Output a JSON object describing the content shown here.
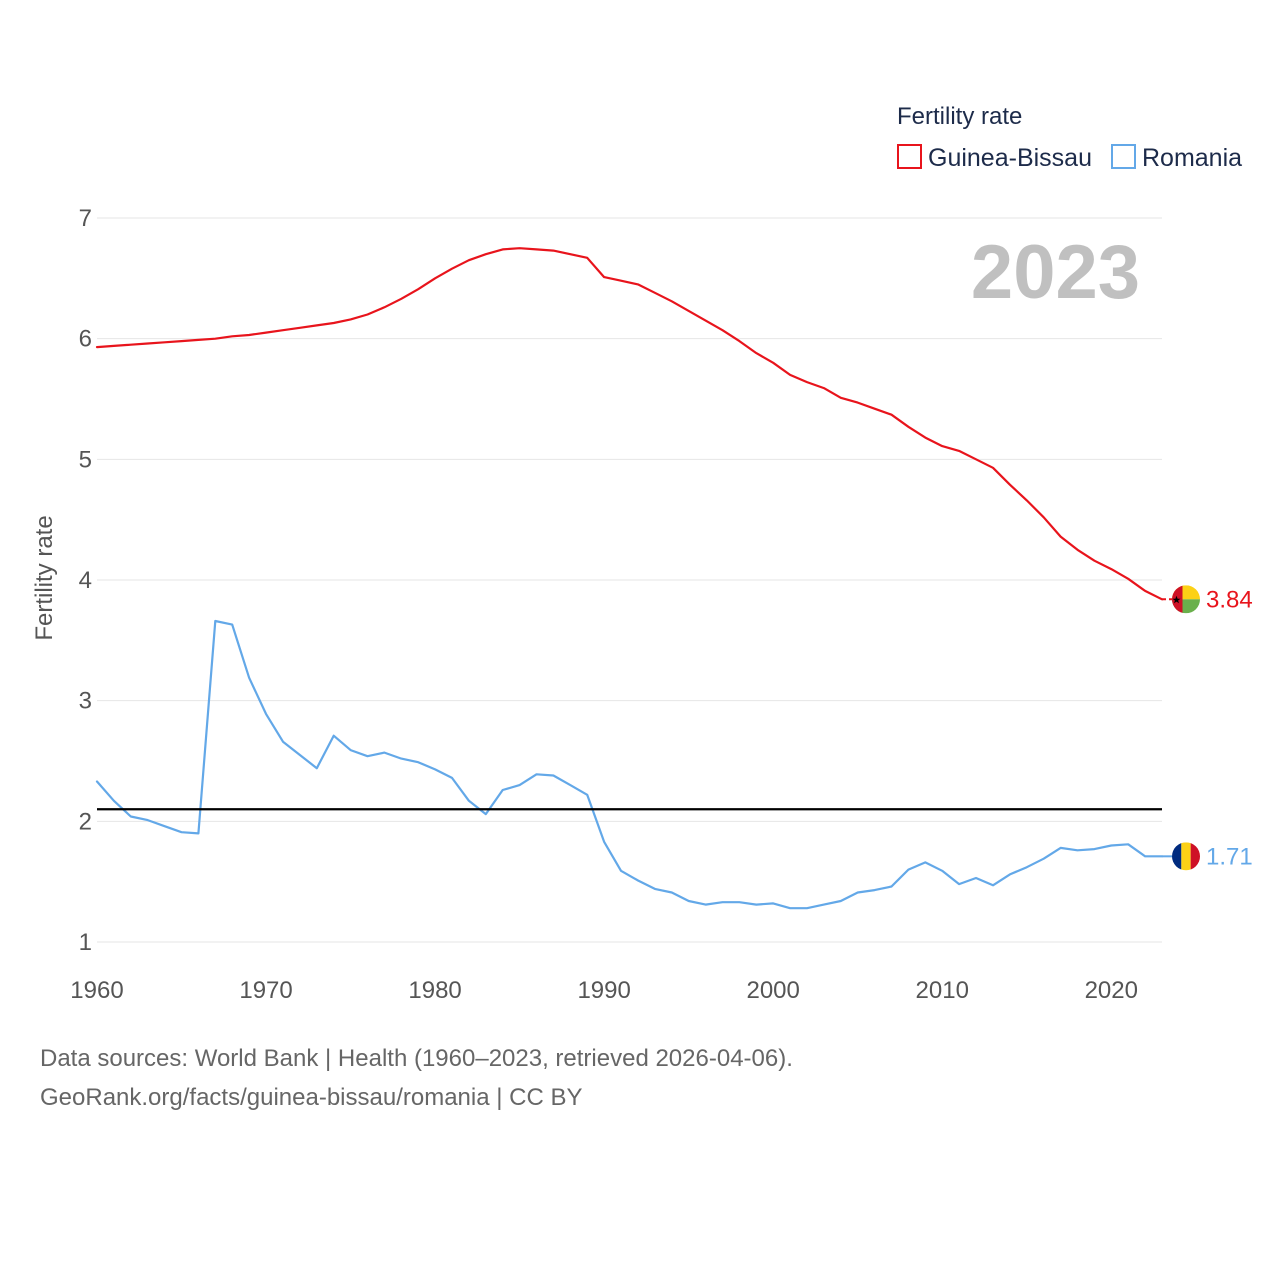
{
  "chart_data": {
    "type": "line",
    "title": "Fertility rate",
    "ylabel": "Fertility rate",
    "xlabel": "",
    "year_display": "2023",
    "xlim": [
      1960,
      2023
    ],
    "ylim": [
      1,
      7
    ],
    "x_ticks": [
      "1960",
      "1970",
      "1980",
      "1990",
      "2000",
      "2010",
      "2020"
    ],
    "y_ticks": [
      "1",
      "2",
      "3",
      "4",
      "5",
      "6",
      "7"
    ],
    "grid": true,
    "legend_position": "top-right",
    "reference_line": {
      "value": 2.1,
      "color": "#000000"
    },
    "x": [
      1960,
      1961,
      1962,
      1963,
      1964,
      1965,
      1966,
      1967,
      1968,
      1969,
      1970,
      1971,
      1972,
      1973,
      1974,
      1975,
      1976,
      1977,
      1978,
      1979,
      1980,
      1981,
      1982,
      1983,
      1984,
      1985,
      1986,
      1987,
      1988,
      1989,
      1990,
      1991,
      1992,
      1993,
      1994,
      1995,
      1996,
      1997,
      1998,
      1999,
      2000,
      2001,
      2002,
      2003,
      2004,
      2005,
      2006,
      2007,
      2008,
      2009,
      2010,
      2011,
      2012,
      2013,
      2014,
      2015,
      2016,
      2017,
      2018,
      2019,
      2020,
      2021,
      2022,
      2023
    ],
    "series": [
      {
        "name": "Guinea-Bissau",
        "color": "#e8141c",
        "end_label": "3.84",
        "flag": "guinea-bissau-flag",
        "values": [
          5.93,
          5.94,
          5.95,
          5.96,
          5.97,
          5.98,
          5.99,
          6.0,
          6.02,
          6.03,
          6.05,
          6.07,
          6.09,
          6.11,
          6.13,
          6.16,
          6.2,
          6.26,
          6.33,
          6.41,
          6.5,
          6.58,
          6.65,
          6.7,
          6.74,
          6.75,
          6.74,
          6.73,
          6.7,
          6.67,
          6.51,
          6.48,
          6.45,
          6.38,
          6.31,
          6.23,
          6.15,
          6.07,
          5.98,
          5.88,
          5.8,
          5.7,
          5.64,
          5.59,
          5.51,
          5.47,
          5.42,
          5.37,
          5.27,
          5.18,
          5.11,
          5.07,
          5.0,
          4.93,
          4.79,
          4.66,
          4.52,
          4.36,
          4.25,
          4.16,
          4.09,
          4.01,
          3.91,
          3.84
        ]
      },
      {
        "name": "Romania",
        "color": "#63a8e8",
        "end_label": "1.71",
        "flag": "romania-flag",
        "values": [
          2.33,
          2.17,
          2.04,
          2.01,
          1.96,
          1.91,
          1.9,
          3.66,
          3.63,
          3.19,
          2.89,
          2.66,
          2.55,
          2.44,
          2.71,
          2.59,
          2.54,
          2.57,
          2.52,
          2.49,
          2.43,
          2.36,
          2.17,
          2.06,
          2.26,
          2.3,
          2.39,
          2.38,
          2.3,
          2.22,
          1.83,
          1.59,
          1.51,
          1.44,
          1.41,
          1.34,
          1.31,
          1.33,
          1.33,
          1.31,
          1.32,
          1.28,
          1.28,
          1.31,
          1.34,
          1.41,
          1.43,
          1.46,
          1.6,
          1.66,
          1.59,
          1.48,
          1.53,
          1.47,
          1.56,
          1.62,
          1.69,
          1.78,
          1.76,
          1.77,
          1.8,
          1.81,
          1.71,
          1.71
        ]
      }
    ]
  },
  "legend": {
    "title": "Fertility rate",
    "items": [
      "Guinea-Bissau",
      "Romania"
    ]
  },
  "footer": {
    "line1": "Data sources: World Bank | Health (1960–2023, retrieved 2026-04-06).",
    "line2": "GeoRank.org/facts/guinea-bissau/romania | CC BY"
  }
}
